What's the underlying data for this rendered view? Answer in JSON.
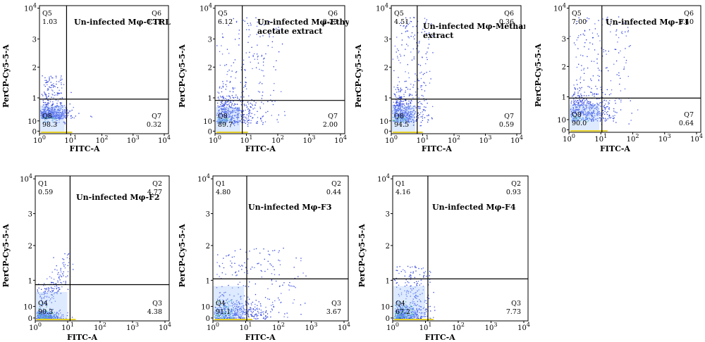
{
  "chart_data": [
    {
      "type": "scatter",
      "title": "Un-infected Mφ-CTRL",
      "xlabel": "FITC-A",
      "ylabel": "PerCP-Cy5-5-A",
      "x_ticks": [
        "10^0",
        "10^1",
        "10^2",
        "10^3",
        "10^4"
      ],
      "y_ticks": [
        "0",
        "10",
        "1",
        "2",
        "3",
        "10^4"
      ],
      "quadrants": [
        {
          "name": "Q5",
          "value": "1.03"
        },
        {
          "name": "Q6",
          "value": "0.31"
        },
        {
          "name": "Q7",
          "value": "0.32"
        },
        {
          "name": "Q8",
          "value": "98.3"
        }
      ]
    },
    {
      "type": "scatter",
      "title": "Un-infected Mφ-Ethyl acetate extract",
      "xlabel": "FITC-A",
      "ylabel": "PerCP-Cy5-5-A",
      "x_ticks": [
        "10^0",
        "10^1",
        "10^2",
        "10^3",
        "10^4"
      ],
      "y_ticks": [
        "0",
        "10",
        "1",
        "2",
        "3",
        "10^4"
      ],
      "quadrants": [
        {
          "name": "Q5",
          "value": "6.12"
        },
        {
          "name": "Q6",
          "value": "2.23"
        },
        {
          "name": "Q7",
          "value": "2.00"
        },
        {
          "name": "Q8",
          "value": "89.7"
        }
      ]
    },
    {
      "type": "scatter",
      "title": "Un-infected Mφ-Methanol extract",
      "xlabel": "FITC-A",
      "ylabel": "PerCP-Cy5-5-A",
      "x_ticks": [
        "10^0",
        "10^1",
        "10^2",
        "10^3",
        "10^4"
      ],
      "y_ticks": [
        "0",
        "10",
        "1",
        "2",
        "3",
        "10^4"
      ],
      "quadrants": [
        {
          "name": "Q5",
          "value": "4.51"
        },
        {
          "name": "Q6",
          "value": "0.36"
        },
        {
          "name": "Q7",
          "value": "0.59"
        },
        {
          "name": "Q8",
          "value": "94.5"
        }
      ]
    },
    {
      "type": "scatter",
      "title": "Un-infected Mφ-F1",
      "xlabel": "FITC-A",
      "ylabel": "PerCP-Cy5-5-A",
      "x_ticks": [
        "10^0",
        "10^1",
        "10^2",
        "10^3",
        "10^4"
      ],
      "y_ticks": [
        "0",
        "10",
        "1",
        "2",
        "3",
        "10^4"
      ],
      "quadrants": [
        {
          "name": "Q5",
          "value": "7.00"
        },
        {
          "name": "Q6",
          "value": "2.40"
        },
        {
          "name": "Q7",
          "value": "0.64"
        },
        {
          "name": "Q8",
          "value": "90.0"
        }
      ]
    },
    {
      "type": "scatter",
      "title": "Un-infected Mφ-F2",
      "xlabel": "FITC-A",
      "ylabel": "PerCP-Cy5-5-A",
      "x_ticks": [
        "10^0",
        "10^1",
        "10^2",
        "10^3",
        "10^4"
      ],
      "y_ticks": [
        "0",
        "10",
        "1",
        "2",
        "3",
        "10^4"
      ],
      "quadrants": [
        {
          "name": "Q1",
          "value": "0.59"
        },
        {
          "name": "Q2",
          "value": "4.77"
        },
        {
          "name": "Q3",
          "value": "4.38"
        },
        {
          "name": "Q4",
          "value": "90.3"
        }
      ]
    },
    {
      "type": "scatter",
      "title": "Un-infected Mφ-F3",
      "xlabel": "FITC-A",
      "ylabel": "PerCP-Cy5-5-A",
      "x_ticks": [
        "10^0",
        "10^1",
        "10^2",
        "10^3",
        "10^4"
      ],
      "y_ticks": [
        "0",
        "10",
        "1",
        "2",
        "3",
        "10^4"
      ],
      "quadrants": [
        {
          "name": "Q1",
          "value": "4.80"
        },
        {
          "name": "Q2",
          "value": "0.44"
        },
        {
          "name": "Q3",
          "value": "3.67"
        },
        {
          "name": "Q4",
          "value": "91.1"
        }
      ]
    },
    {
      "type": "scatter",
      "title": "Un-infected Mφ-F4",
      "xlabel": "FITC-A",
      "ylabel": "PerCP-Cy5-5-A",
      "x_ticks": [
        "10^0",
        "10^1",
        "10^2",
        "10^3",
        "10^4"
      ],
      "y_ticks": [
        "0",
        "10",
        "1",
        "2",
        "3",
        "10^4"
      ],
      "quadrants": [
        {
          "name": "Q1",
          "value": "4.16"
        },
        {
          "name": "Q2",
          "value": "0.93"
        },
        {
          "name": "Q3",
          "value": "7.73"
        },
        {
          "name": "Q4",
          "value": "67.2"
        }
      ]
    }
  ]
}
